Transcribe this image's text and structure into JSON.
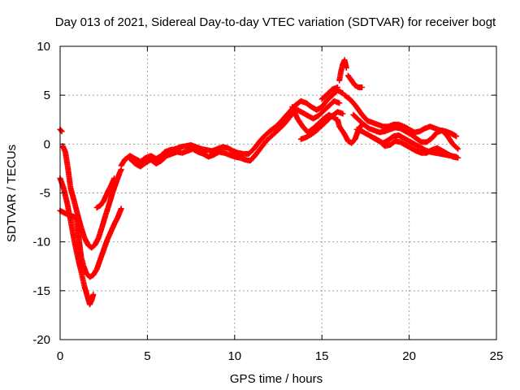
{
  "chart_data": {
    "type": "scatter",
    "title": "Day 013 of 2021, Sidereal Day-to-day VTEC variation (SDTVAR) for receiver bogt",
    "xlabel": "GPS time / hours",
    "ylabel": "SDTVAR / TECUs",
    "xlim": [
      0,
      25
    ],
    "ylim": [
      -20,
      10
    ],
    "x_ticks": [
      0,
      5,
      10,
      15,
      20,
      25
    ],
    "y_ticks": [
      -20,
      -15,
      -10,
      -5,
      0,
      5,
      10
    ],
    "x_tick_labels": [
      "0",
      "5",
      "10",
      "15",
      "20",
      "25"
    ],
    "y_tick_labels": [
      "-20",
      "-15",
      "-10",
      "-5",
      "0",
      "5",
      "10"
    ],
    "grid": true,
    "marker": "+",
    "color": "#ff0000",
    "series": [
      {
        "points": [
          [
            0.0,
            1.5
          ],
          [
            0.1,
            1.3
          ]
        ]
      },
      {
        "points": [
          [
            0.15,
            -0.2
          ],
          [
            0.3,
            -0.8
          ],
          [
            0.45,
            -2.5
          ],
          [
            0.6,
            -4.5
          ],
          [
            0.8,
            -5.8
          ],
          [
            1.0,
            -7.2
          ],
          [
            1.2,
            -8.5
          ],
          [
            1.4,
            -9.6
          ],
          [
            1.6,
            -10.3
          ],
          [
            1.8,
            -10.6
          ],
          [
            2.0,
            -10.3
          ],
          [
            2.2,
            -9.6
          ],
          [
            2.4,
            -8.5
          ],
          [
            2.6,
            -7.3
          ],
          [
            2.8,
            -6.2
          ],
          [
            3.0,
            -5.0
          ],
          [
            3.2,
            -4.0
          ],
          [
            3.4,
            -3.0
          ],
          [
            3.5,
            -2.6
          ]
        ]
      },
      {
        "points": [
          [
            0.0,
            -3.5
          ],
          [
            0.2,
            -4.5
          ],
          [
            0.4,
            -6.0
          ],
          [
            0.6,
            -7.8
          ],
          [
            0.8,
            -9.8
          ],
          [
            1.0,
            -11.5
          ],
          [
            1.2,
            -13.0
          ],
          [
            1.4,
            -14.6
          ],
          [
            1.6,
            -15.8
          ],
          [
            1.7,
            -16.4
          ],
          [
            1.8,
            -16.0
          ],
          [
            1.9,
            -15.4
          ]
        ]
      },
      {
        "points": [
          [
            0.0,
            -6.8
          ],
          [
            0.3,
            -7.1
          ],
          [
            0.6,
            -7.3
          ],
          [
            0.9,
            -7.5
          ],
          [
            1.0,
            -8.5
          ],
          [
            1.1,
            -10.0
          ],
          [
            1.2,
            -11.5
          ],
          [
            1.35,
            -12.5
          ],
          [
            1.5,
            -13.2
          ],
          [
            1.7,
            -13.6
          ],
          [
            1.9,
            -13.4
          ],
          [
            2.1,
            -12.8
          ],
          [
            2.3,
            -11.8
          ],
          [
            2.5,
            -10.8
          ],
          [
            2.7,
            -9.8
          ],
          [
            2.9,
            -9.0
          ],
          [
            3.1,
            -8.2
          ],
          [
            3.3,
            -7.5
          ],
          [
            3.5,
            -6.6
          ]
        ]
      },
      {
        "points": [
          [
            2.1,
            -6.5
          ],
          [
            2.3,
            -6.3
          ],
          [
            2.5,
            -5.8
          ],
          [
            2.7,
            -5.0
          ],
          [
            2.9,
            -4.3
          ],
          [
            3.1,
            -3.5
          ]
        ]
      },
      {
        "points": [
          [
            3.5,
            -2.2
          ],
          [
            3.7,
            -1.6
          ],
          [
            4.0,
            -1.2
          ],
          [
            4.3,
            -1.5
          ],
          [
            4.6,
            -1.8
          ],
          [
            4.9,
            -1.4
          ],
          [
            5.2,
            -1.2
          ],
          [
            5.5,
            -1.5
          ],
          [
            5.8,
            -1.2
          ],
          [
            6.0,
            -0.8
          ],
          [
            6.3,
            -0.6
          ],
          [
            6.6,
            -0.5
          ],
          [
            6.9,
            -0.3
          ],
          [
            7.2,
            -0.2
          ],
          [
            7.5,
            -0.1
          ],
          [
            7.8,
            -0.3
          ],
          [
            8.1,
            -0.5
          ],
          [
            8.4,
            -0.6
          ],
          [
            8.7,
            -0.7
          ],
          [
            9.0,
            -0.5
          ],
          [
            9.3,
            -0.3
          ],
          [
            9.6,
            -0.4
          ],
          [
            9.9,
            -0.7
          ],
          [
            10.2,
            -0.9
          ],
          [
            10.5,
            -1.0
          ],
          [
            10.8,
            -1.0
          ],
          [
            11.1,
            -0.5
          ],
          [
            11.4,
            0.2
          ],
          [
            11.7,
            0.8
          ],
          [
            12.0,
            1.3
          ],
          [
            12.3,
            1.7
          ],
          [
            12.6,
            2.2
          ],
          [
            12.9,
            2.8
          ],
          [
            13.2,
            3.4
          ],
          [
            13.5,
            4.0
          ],
          [
            13.8,
            4.4
          ],
          [
            14.1,
            4.2
          ],
          [
            14.4,
            3.8
          ],
          [
            14.7,
            3.5
          ],
          [
            15.0,
            3.8
          ],
          [
            15.3,
            4.5
          ],
          [
            15.6,
            5.0
          ],
          [
            15.9,
            5.5
          ],
          [
            16.2,
            5.2
          ]
        ]
      },
      {
        "points": [
          [
            4.0,
            -1.5
          ],
          [
            4.3,
            -2.0
          ],
          [
            4.6,
            -2.3
          ],
          [
            4.9,
            -1.9
          ],
          [
            5.2,
            -1.6
          ],
          [
            5.5,
            -2.0
          ],
          [
            5.8,
            -1.7
          ],
          [
            6.1,
            -1.2
          ],
          [
            6.4,
            -1.0
          ],
          [
            6.7,
            -0.8
          ],
          [
            7.0,
            -0.9
          ],
          [
            7.3,
            -0.7
          ],
          [
            7.6,
            -0.5
          ],
          [
            7.9,
            -0.8
          ],
          [
            8.2,
            -1.0
          ],
          [
            8.5,
            -1.3
          ],
          [
            8.8,
            -1.1
          ],
          [
            9.1,
            -0.8
          ],
          [
            9.4,
            -0.9
          ],
          [
            9.7,
            -1.1
          ],
          [
            10.0,
            -1.3
          ],
          [
            10.3,
            -1.4
          ],
          [
            10.6,
            -1.6
          ],
          [
            10.9,
            -1.7
          ],
          [
            11.2,
            -1.1
          ],
          [
            11.5,
            -0.4
          ],
          [
            11.8,
            0.3
          ],
          [
            12.1,
            0.8
          ],
          [
            12.4,
            1.3
          ],
          [
            12.7,
            1.8
          ],
          [
            13.0,
            2.4
          ],
          [
            13.3,
            3.1
          ],
          [
            13.6,
            3.5
          ],
          [
            13.9,
            3.2
          ],
          [
            14.2,
            2.9
          ],
          [
            14.5,
            2.6
          ],
          [
            14.8,
            2.9
          ],
          [
            15.1,
            3.4
          ],
          [
            15.4,
            3.9
          ],
          [
            15.7,
            4.4
          ],
          [
            16.0,
            4.2
          ]
        ]
      },
      {
        "points": [
          [
            13.3,
            3.8
          ],
          [
            13.6,
            2.6
          ],
          [
            13.9,
            1.8
          ],
          [
            14.2,
            1.2
          ],
          [
            14.5,
            1.6
          ],
          [
            14.8,
            2.1
          ],
          [
            15.1,
            2.6
          ],
          [
            15.4,
            3.0
          ],
          [
            15.7,
            2.7
          ],
          [
            15.9,
            2.4
          ]
        ]
      },
      {
        "points": [
          [
            13.8,
            0.5
          ],
          [
            14.1,
            0.7
          ],
          [
            14.4,
            1.0
          ],
          [
            14.7,
            1.4
          ],
          [
            15.0,
            1.9
          ],
          [
            15.3,
            2.4
          ],
          [
            15.6,
            2.9
          ],
          [
            15.9,
            3.3
          ],
          [
            16.2,
            3.1
          ]
        ]
      },
      {
        "points": [
          [
            15.0,
            4.6
          ],
          [
            15.3,
            5.1
          ],
          [
            15.6,
            5.6
          ],
          [
            15.9,
            5.8
          ]
        ]
      },
      {
        "points": [
          [
            16.0,
            6.5
          ],
          [
            16.1,
            7.5
          ],
          [
            16.2,
            8.2
          ],
          [
            16.3,
            8.6
          ],
          [
            16.4,
            7.8
          ]
        ]
      },
      {
        "points": [
          [
            16.5,
            7.0
          ],
          [
            16.7,
            6.5
          ],
          [
            16.9,
            6.0
          ],
          [
            17.1,
            5.8
          ],
          [
            17.3,
            5.8
          ]
        ]
      },
      {
        "points": [
          [
            15.9,
            2.5
          ],
          [
            16.0,
            1.8
          ],
          [
            16.3,
            1.0
          ],
          [
            16.5,
            0.3
          ],
          [
            16.7,
            0.1
          ],
          [
            16.9,
            0.5
          ],
          [
            17.1,
            1.5
          ],
          [
            17.3,
            2.0
          ]
        ]
      },
      {
        "points": [
          [
            16.3,
            5.0
          ],
          [
            16.6,
            4.6
          ],
          [
            16.9,
            4.0
          ],
          [
            17.1,
            3.5
          ],
          [
            17.3,
            3.0
          ],
          [
            17.6,
            2.4
          ],
          [
            17.9,
            2.2
          ],
          [
            18.2,
            2.0
          ],
          [
            18.5,
            1.8
          ],
          [
            18.8,
            1.8
          ],
          [
            19.1,
            2.0
          ],
          [
            19.4,
            2.0
          ],
          [
            19.7,
            1.8
          ],
          [
            20.0,
            1.5
          ],
          [
            20.3,
            1.2
          ],
          [
            20.6,
            1.3
          ],
          [
            20.9,
            1.6
          ],
          [
            21.2,
            1.8
          ],
          [
            21.5,
            1.6
          ],
          [
            21.8,
            1.4
          ],
          [
            22.1,
            1.3
          ],
          [
            22.4,
            1.1
          ],
          [
            22.7,
            0.8
          ]
        ]
      },
      {
        "points": [
          [
            16.8,
            3.0
          ],
          [
            17.1,
            2.5
          ],
          [
            17.4,
            2.0
          ],
          [
            17.7,
            1.6
          ],
          [
            18.0,
            1.4
          ],
          [
            18.3,
            1.2
          ],
          [
            18.6,
            1.3
          ],
          [
            18.9,
            1.5
          ],
          [
            19.2,
            1.7
          ],
          [
            19.5,
            1.6
          ],
          [
            19.8,
            1.3
          ],
          [
            20.1,
            1.0
          ],
          [
            20.4,
            0.6
          ],
          [
            20.7,
            0.2
          ],
          [
            21.0,
            0.2
          ],
          [
            21.3,
            0.6
          ],
          [
            21.6,
            1.2
          ],
          [
            21.9,
            1.4
          ],
          [
            22.2,
            0.8
          ],
          [
            22.5,
            0.0
          ],
          [
            22.8,
            -0.5
          ]
        ]
      },
      {
        "points": [
          [
            17.0,
            1.5
          ],
          [
            17.3,
            1.3
          ],
          [
            17.6,
            1.0
          ],
          [
            17.9,
            0.7
          ],
          [
            18.2,
            0.4
          ],
          [
            18.5,
            0.1
          ],
          [
            18.8,
            0.4
          ],
          [
            19.1,
            0.8
          ],
          [
            19.4,
            0.9
          ],
          [
            19.7,
            0.6
          ],
          [
            20.0,
            0.3
          ],
          [
            20.3,
            0.0
          ],
          [
            20.6,
            -0.3
          ],
          [
            20.9,
            -0.6
          ],
          [
            21.2,
            -0.8
          ],
          [
            21.5,
            -0.9
          ],
          [
            21.8,
            -1.0
          ],
          [
            22.1,
            -1.1
          ],
          [
            22.4,
            -1.2
          ],
          [
            22.7,
            -1.3
          ]
        ]
      },
      {
        "points": [
          [
            18.0,
            0.6
          ],
          [
            18.3,
            0.3
          ],
          [
            18.6,
            -0.2
          ],
          [
            18.9,
            -0.1
          ],
          [
            19.2,
            0.3
          ],
          [
            19.5,
            0.2
          ],
          [
            19.8,
            -0.1
          ],
          [
            20.1,
            -0.4
          ],
          [
            20.4,
            -0.7
          ],
          [
            20.7,
            -0.9
          ],
          [
            21.0,
            -0.9
          ],
          [
            21.3,
            -0.6
          ],
          [
            21.6,
            -0.4
          ],
          [
            21.9,
            -0.7
          ],
          [
            22.2,
            -1.0
          ],
          [
            22.5,
            -1.3
          ],
          [
            22.8,
            -1.4
          ]
        ]
      }
    ]
  }
}
